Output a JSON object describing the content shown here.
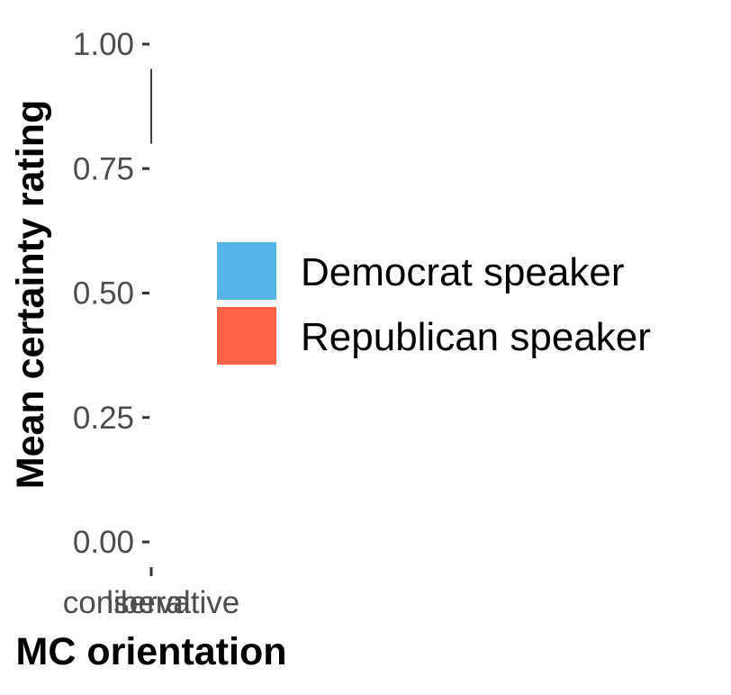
{
  "chart_data": {
    "type": "bar",
    "xlabel": "MC orientation",
    "ylabel": "Mean certainty rating",
    "categories": [
      "conservative",
      "liberal"
    ],
    "ylim": [
      0,
      1
    ],
    "y_ticks": [
      {
        "value": 0.0,
        "label": "0.00"
      },
      {
        "value": 0.25,
        "label": "0.25"
      },
      {
        "value": 0.5,
        "label": "0.50"
      },
      {
        "value": 0.75,
        "label": "0.75"
      },
      {
        "value": 1.0,
        "label": "1.00"
      }
    ],
    "series": [
      {
        "name": "Democrat speaker",
        "color": "#56B4E9",
        "values": [
          null,
          null
        ]
      },
      {
        "name": "Republican speaker",
        "color": "#FF6347",
        "values": [
          null,
          null
        ]
      }
    ],
    "error_bars": [
      {
        "category": "conservative",
        "low": 0.8,
        "high": 0.95
      }
    ],
    "grid": false,
    "legend_position": "right"
  }
}
